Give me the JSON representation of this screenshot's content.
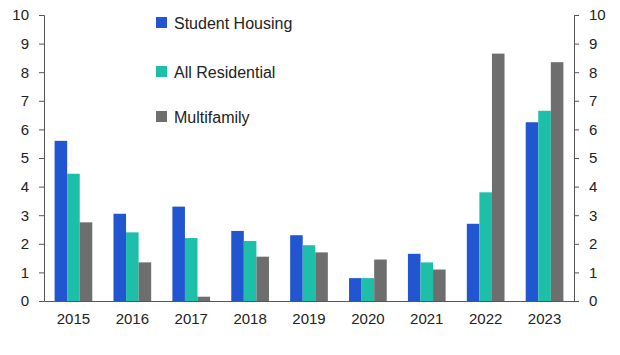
{
  "chart_data": {
    "type": "bar",
    "categories": [
      "2015",
      "2016",
      "2017",
      "2018",
      "2019",
      "2020",
      "2021",
      "2022",
      "2023"
    ],
    "series": [
      {
        "name": "Student Housing",
        "color": "#2156d0",
        "values": [
          5.6,
          3.05,
          3.3,
          2.45,
          2.3,
          0.8,
          1.65,
          2.7,
          6.25
        ]
      },
      {
        "name": "All Residential",
        "color": "#1dbfa9",
        "values": [
          4.45,
          2.4,
          2.2,
          2.1,
          1.95,
          0.8,
          1.35,
          3.8,
          6.65
        ]
      },
      {
        "name": "Multifamily",
        "color": "#6e6e6e",
        "values": [
          2.75,
          1.35,
          0.15,
          1.55,
          1.7,
          1.45,
          1.1,
          8.65,
          8.35
        ]
      }
    ],
    "ylim": [
      0,
      10
    ],
    "yticks": [
      0,
      1,
      2,
      3,
      4,
      5,
      6,
      7,
      8,
      9,
      10
    ],
    "y2lim": [
      0,
      10
    ],
    "y2ticks": [
      0,
      1,
      2,
      3,
      4,
      5,
      6,
      7,
      8,
      9,
      10
    ],
    "legend": "top-left"
  }
}
